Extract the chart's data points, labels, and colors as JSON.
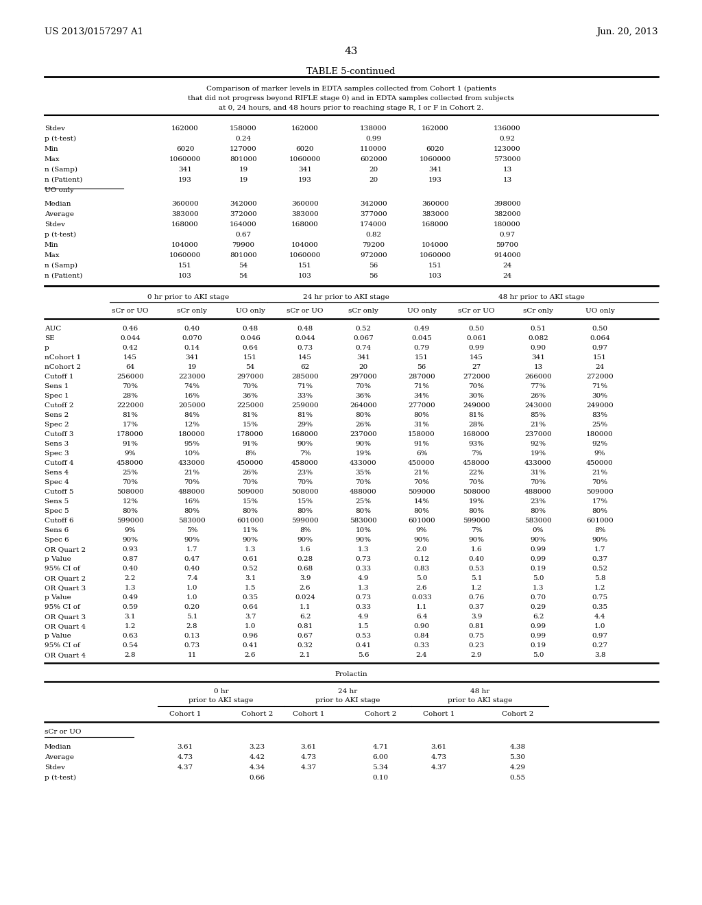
{
  "header_left": "US 2013/0157297 A1",
  "header_right": "Jun. 20, 2013",
  "page_number": "43",
  "table_title": "TABLE 5-continued",
  "table_caption_lines": [
    "Comparison of marker levels in EDTA samples collected from Cohort 1 (patients",
    "that did not progress beyond RIFLE stage 0) and in EDTA samples collected from subjects",
    "at 0, 24 hours, and 48 hours prior to reaching stage R, I or F in Cohort 2."
  ],
  "section1_rows": [
    [
      "Stdev",
      "162000",
      "158000",
      "162000",
      "138000",
      "162000",
      "136000"
    ],
    [
      "p (t-test)",
      "",
      "0.24",
      "",
      "0.99",
      "",
      "0.92"
    ],
    [
      "Min",
      "6020",
      "127000",
      "6020",
      "110000",
      "6020",
      "123000"
    ],
    [
      "Max",
      "1060000",
      "801000",
      "1060000",
      "602000",
      "1060000",
      "573000"
    ],
    [
      "n (Samp)",
      "341",
      "19",
      "341",
      "20",
      "341",
      "13"
    ],
    [
      "n (Patient)",
      "193",
      "19",
      "193",
      "20",
      "193",
      "13"
    ],
    [
      "UO only",
      "",
      "",
      "",
      "",
      "",
      ""
    ]
  ],
  "section2_rows": [
    [
      "Median",
      "360000",
      "342000",
      "360000",
      "342000",
      "360000",
      "398000"
    ],
    [
      "Average",
      "383000",
      "372000",
      "383000",
      "377000",
      "383000",
      "382000"
    ],
    [
      "Stdev",
      "168000",
      "164000",
      "168000",
      "174000",
      "168000",
      "180000"
    ],
    [
      "p (t-test)",
      "",
      "0.67",
      "",
      "0.82",
      "",
      "0.97"
    ],
    [
      "Min",
      "104000",
      "79900",
      "104000",
      "79200",
      "104000",
      "59700"
    ],
    [
      "Max",
      "1060000",
      "801000",
      "1060000",
      "972000",
      "1060000",
      "914000"
    ],
    [
      "n (Samp)",
      "151",
      "54",
      "151",
      "56",
      "151",
      "24"
    ],
    [
      "n (Patient)",
      "103",
      "54",
      "103",
      "56",
      "103",
      "24"
    ]
  ],
  "col_headers_main": [
    "0 hr prior to AKI stage",
    "24 hr prior to AKI stage",
    "48 hr prior to AKI stage"
  ],
  "col_headers_sub": [
    "sCr or UO",
    "sCr only",
    "UO only",
    "sCr or UO",
    "sCr only",
    "UO only",
    "sCr or UO",
    "sCr only",
    "UO only"
  ],
  "section3_rows": [
    [
      "AUC",
      "0.46",
      "0.40",
      "0.48",
      "0.48",
      "0.52",
      "0.49",
      "0.50",
      "0.51",
      "0.50"
    ],
    [
      "SE",
      "0.044",
      "0.070",
      "0.046",
      "0.044",
      "0.067",
      "0.045",
      "0.061",
      "0.082",
      "0.064"
    ],
    [
      "p",
      "0.42",
      "0.14",
      "0.64",
      "0.73",
      "0.74",
      "0.79",
      "0.99",
      "0.90",
      "0.97"
    ],
    [
      "nCohort 1",
      "145",
      "341",
      "151",
      "145",
      "341",
      "151",
      "145",
      "341",
      "151"
    ],
    [
      "nCohort 2",
      "64",
      "19",
      "54",
      "62",
      "20",
      "56",
      "27",
      "13",
      "24"
    ],
    [
      "Cutoff 1",
      "256000",
      "223000",
      "297000",
      "285000",
      "297000",
      "287000",
      "272000",
      "266000",
      "272000"
    ],
    [
      "Sens 1",
      "70%",
      "74%",
      "70%",
      "71%",
      "70%",
      "71%",
      "70%",
      "77%",
      "71%"
    ],
    [
      "Spec 1",
      "28%",
      "16%",
      "36%",
      "33%",
      "36%",
      "34%",
      "30%",
      "26%",
      "30%"
    ],
    [
      "Cutoff 2",
      "222000",
      "205000",
      "225000",
      "259000",
      "264000",
      "277000",
      "249000",
      "243000",
      "249000"
    ],
    [
      "Sens 2",
      "81%",
      "84%",
      "81%",
      "81%",
      "80%",
      "80%",
      "81%",
      "85%",
      "83%"
    ],
    [
      "Spec 2",
      "17%",
      "12%",
      "15%",
      "29%",
      "26%",
      "31%",
      "28%",
      "21%",
      "25%"
    ],
    [
      "Cutoff 3",
      "178000",
      "180000",
      "178000",
      "168000",
      "237000",
      "158000",
      "168000",
      "237000",
      "180000"
    ],
    [
      "Sens 3",
      "91%",
      "95%",
      "91%",
      "90%",
      "90%",
      "91%",
      "93%",
      "92%",
      "92%"
    ],
    [
      "Spec 3",
      "9%",
      "10%",
      "8%",
      "7%",
      "19%",
      "6%",
      "7%",
      "19%",
      "9%"
    ],
    [
      "Cutoff 4",
      "458000",
      "433000",
      "450000",
      "458000",
      "433000",
      "450000",
      "458000",
      "433000",
      "450000"
    ],
    [
      "Sens 4",
      "25%",
      "21%",
      "26%",
      "23%",
      "35%",
      "21%",
      "22%",
      "31%",
      "21%"
    ],
    [
      "Spec 4",
      "70%",
      "70%",
      "70%",
      "70%",
      "70%",
      "70%",
      "70%",
      "70%",
      "70%"
    ],
    [
      "Cutoff 5",
      "508000",
      "488000",
      "509000",
      "508000",
      "488000",
      "509000",
      "508000",
      "488000",
      "509000"
    ],
    [
      "Sens 5",
      "12%",
      "16%",
      "15%",
      "15%",
      "25%",
      "14%",
      "19%",
      "23%",
      "17%"
    ],
    [
      "Spec 5",
      "80%",
      "80%",
      "80%",
      "80%",
      "80%",
      "80%",
      "80%",
      "80%",
      "80%"
    ],
    [
      "Cutoff 6",
      "599000",
      "583000",
      "601000",
      "599000",
      "583000",
      "601000",
      "599000",
      "583000",
      "601000"
    ],
    [
      "Sens 6",
      "9%",
      "5%",
      "11%",
      "8%",
      "10%",
      "9%",
      "7%",
      "0%",
      "8%"
    ],
    [
      "Spec 6",
      "90%",
      "90%",
      "90%",
      "90%",
      "90%",
      "90%",
      "90%",
      "90%",
      "90%"
    ],
    [
      "OR Quart 2",
      "0.93",
      "1.7",
      "1.3",
      "1.6",
      "1.3",
      "2.0",
      "1.6",
      "0.99",
      "1.7"
    ],
    [
      "p Value",
      "0.87",
      "0.47",
      "0.61",
      "0.28",
      "0.73",
      "0.12",
      "0.40",
      "0.99",
      "0.37"
    ],
    [
      "95% CI of",
      "0.40",
      "0.40",
      "0.52",
      "0.68",
      "0.33",
      "0.83",
      "0.53",
      "0.19",
      "0.52"
    ],
    [
      "OR Quart 2",
      "2.2",
      "7.4",
      "3.1",
      "3.9",
      "4.9",
      "5.0",
      "5.1",
      "5.0",
      "5.8"
    ],
    [
      "OR Quart 3",
      "1.3",
      "1.0",
      "1.5",
      "2.6",
      "1.3",
      "2.6",
      "1.2",
      "1.3",
      "1.2"
    ],
    [
      "p Value",
      "0.49",
      "1.0",
      "0.35",
      "0.024",
      "0.73",
      "0.033",
      "0.76",
      "0.70",
      "0.75"
    ],
    [
      "95% CI of",
      "0.59",
      "0.20",
      "0.64",
      "1.1",
      "0.33",
      "1.1",
      "0.37",
      "0.29",
      "0.35"
    ],
    [
      "OR Quart 3",
      "3.1",
      "5.1",
      "3.7",
      "6.2",
      "4.9",
      "6.4",
      "3.9",
      "6.2",
      "4.4"
    ],
    [
      "OR Quart 4",
      "1.2",
      "2.8",
      "1.0",
      "0.81",
      "1.5",
      "0.90",
      "0.81",
      "0.99",
      "1.0"
    ],
    [
      "p Value",
      "0.63",
      "0.13",
      "0.96",
      "0.67",
      "0.53",
      "0.84",
      "0.75",
      "0.99",
      "0.97"
    ],
    [
      "95% CI of",
      "0.54",
      "0.73",
      "0.41",
      "0.32",
      "0.41",
      "0.33",
      "0.23",
      "0.19",
      "0.27"
    ],
    [
      "OR Quart 4",
      "2.8",
      "11",
      "2.6",
      "2.1",
      "5.6",
      "2.4",
      "2.9",
      "5.0",
      "3.8"
    ]
  ],
  "prolactin_title": "Prolactin",
  "prolactin_col_headers_line1": [
    "0 hr",
    "24 hr",
    "48 hr"
  ],
  "prolactin_col_headers_line2": [
    "prior to AKI stage",
    "prior to AKI stage",
    "prior to AKI stage"
  ],
  "prolactin_col_sub": [
    "Cohort 1",
    "Cohort 2",
    "Cohort 1",
    "Cohort 2",
    "Cohort 1",
    "Cohort 2"
  ],
  "prolactin_section_label": "sCr or UO",
  "prolactin_rows": [
    [
      "Median",
      "3.61",
      "3.23",
      "3.61",
      "4.71",
      "3.61",
      "4.38"
    ],
    [
      "Average",
      "4.73",
      "4.42",
      "4.73",
      "6.00",
      "4.73",
      "5.30"
    ],
    [
      "Stdev",
      "4.37",
      "4.34",
      "4.37",
      "5.34",
      "4.37",
      "4.29"
    ],
    [
      "p (t-test)",
      "",
      "0.66",
      "",
      "0.10",
      "",
      "0.55"
    ]
  ]
}
